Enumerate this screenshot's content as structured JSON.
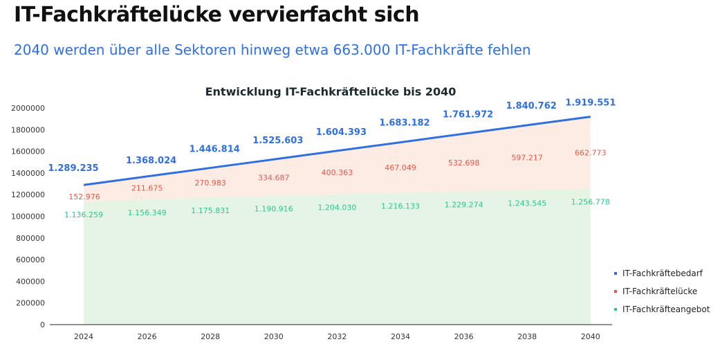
{
  "header": {
    "title": "IT-Fachkräftelücke vervierfacht sich",
    "subtitle": "2040 werden über alle Sektoren hinweg etwa 663.000 IT-Fachkräfte fehlen"
  },
  "chart_data": {
    "type": "area",
    "title": "Entwicklung IT-Fachkräftelücke bis 2040",
    "xlabel": "",
    "ylabel": "",
    "categories": [
      "2024",
      "2026",
      "2028",
      "2030",
      "2032",
      "2034",
      "2036",
      "2038",
      "2040"
    ],
    "ylim": [
      0,
      2000000
    ],
    "y_ticks": [
      0,
      200000,
      400000,
      600000,
      800000,
      1000000,
      1200000,
      1400000,
      1600000,
      1800000,
      2000000
    ],
    "y_tick_labels": [
      "0",
      "200000",
      "400000",
      "600000",
      "800000",
      "1000000",
      "1200000",
      "1400000",
      "1600000",
      "1800000",
      "2000000"
    ],
    "grid": false,
    "legend_position": "right",
    "series": [
      {
        "name": "IT-Fachkräftebedarf",
        "kind": "line",
        "color": "#2f6fe0",
        "values": [
          1289235,
          1368024,
          1446814,
          1525603,
          1604393,
          1683182,
          1761972,
          1840762,
          1919551
        ],
        "labels": [
          "1.289.235",
          "1.368.024",
          "1.446.814",
          "1.525.603",
          "1.604.393",
          "1.683.182",
          "1.761.972",
          "1.840.762",
          "1.919.551"
        ]
      },
      {
        "name": "IT-Fachkräftelücke",
        "kind": "stacked-area",
        "color": "#e8564a",
        "fill": "#fdece3",
        "values": [
          152976,
          211675,
          270983,
          334687,
          400363,
          467049,
          532698,
          597217,
          662773
        ],
        "labels": [
          "152.976",
          "211.675",
          "270.983",
          "334.687",
          "400.363",
          "467.049",
          "532.698",
          "597.217",
          "662.773"
        ]
      },
      {
        "name": "IT-Fachkräfteangebot",
        "kind": "area",
        "color": "#2ec58f",
        "fill": "#e6f4e6",
        "values": [
          1136259,
          1156349,
          1175831,
          1190916,
          1204030,
          1216133,
          1229274,
          1243545,
          1256778
        ],
        "labels": [
          "1.136.259",
          "1.156.349",
          "1.175.831",
          "1.190.916",
          "1.204.030",
          "1.216.133",
          "1.229.274",
          "1.243.545",
          "1.256.778"
        ]
      }
    ]
  }
}
